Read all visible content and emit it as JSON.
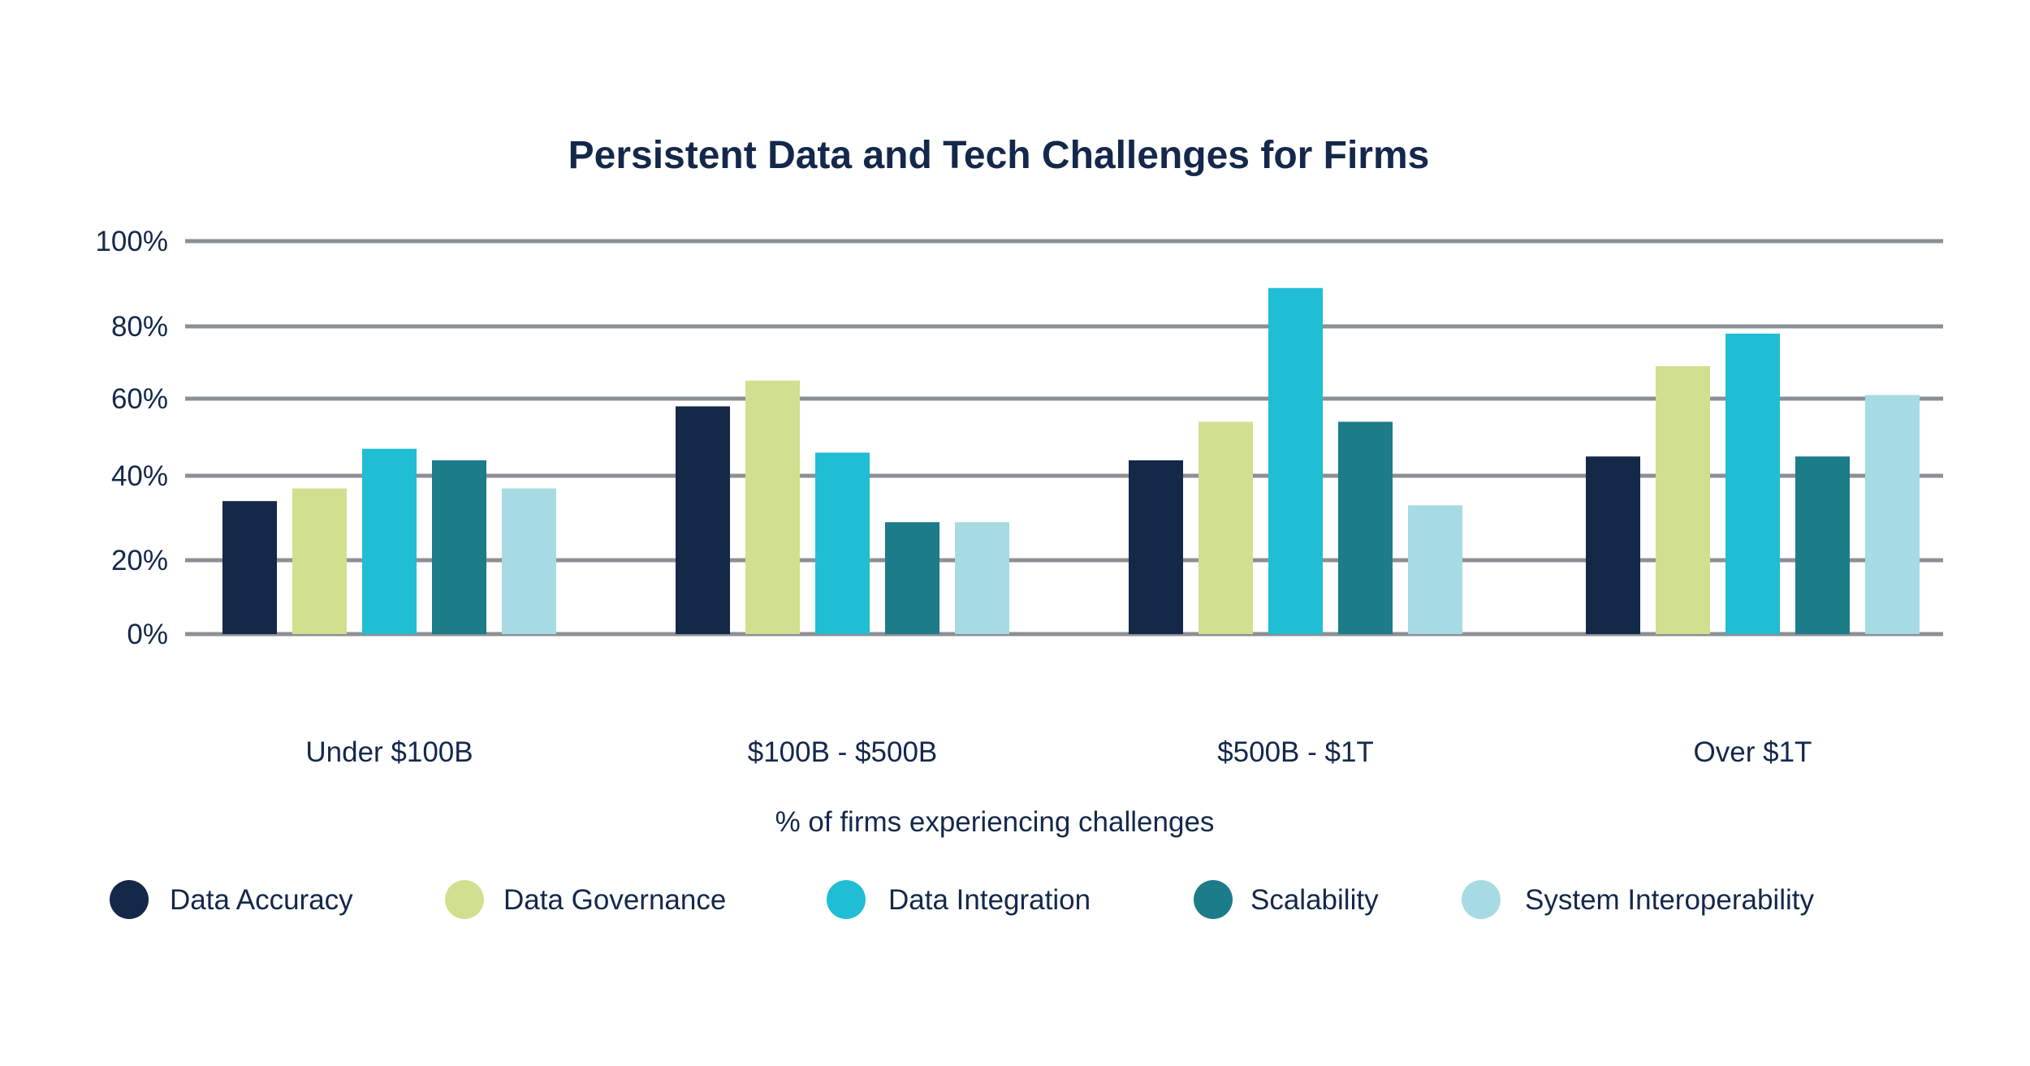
{
  "chart_data": {
    "type": "bar",
    "title": "Persistent Data and Tech Challenges for Firms",
    "xlabel": "% of firms experiencing challenges",
    "ylabel": "",
    "ylim": [
      0,
      100
    ],
    "yticks": [
      0,
      20,
      40,
      60,
      80,
      100
    ],
    "ytick_labels": [
      "0%",
      "20%",
      "40%",
      "60%",
      "80%",
      "100%"
    ],
    "grid": true,
    "legend_position": "bottom",
    "categories": [
      "Under $100B",
      "$100B - $500B",
      "$500B - $1T",
      "Over $1T"
    ],
    "series": [
      {
        "name": "Data Accuracy",
        "color": "#142848",
        "values": [
          34,
          58,
          44,
          45
        ]
      },
      {
        "name": "Data Governance",
        "color": "#d0e08f",
        "values": [
          37,
          65,
          54,
          69
        ]
      },
      {
        "name": "Data Integration",
        "color": "#1fbed4",
        "values": [
          47,
          46,
          89,
          78
        ]
      },
      {
        "name": "Scalability",
        "color": "#1c7c89",
        "values": [
          44,
          29,
          54,
          45
        ]
      },
      {
        "name": "System Interoperability",
        "color": "#a6dbe3",
        "values": [
          37,
          29,
          33,
          61
        ]
      }
    ]
  }
}
